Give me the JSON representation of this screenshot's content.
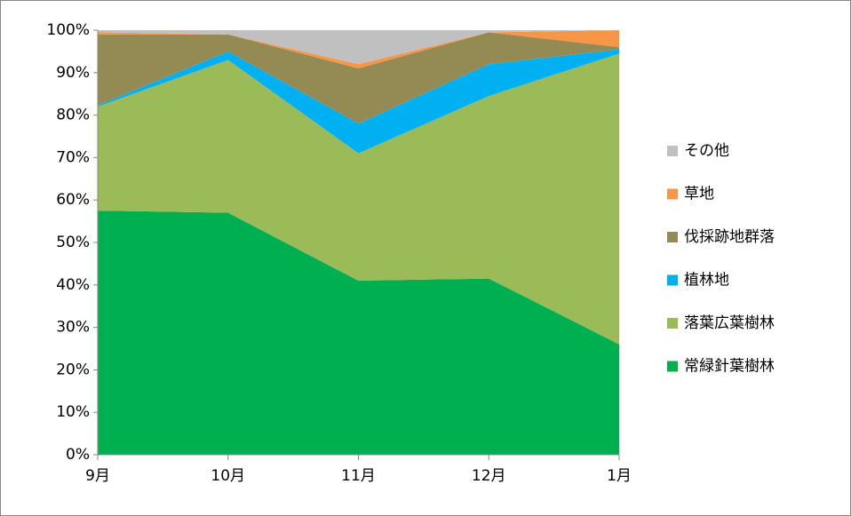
{
  "chart_data": {
    "type": "stacked_area",
    "categories": [
      "9月",
      "10月",
      "11月",
      "12月",
      "1月"
    ],
    "series": [
      {
        "name": "常緑針葉樹林",
        "color": "#00b050",
        "values": [
          57.5,
          57,
          41,
          41.5,
          26
        ]
      },
      {
        "name": "落葉広葉樹林",
        "color": "#9bbb59",
        "values": [
          24.5,
          36,
          30,
          43,
          68.5
        ]
      },
      {
        "name": "植林地",
        "color": "#00b0f0",
        "values": [
          0.3,
          2,
          7,
          7.5,
          1
        ]
      },
      {
        "name": "伐採跡地群落",
        "color": "#948a54",
        "values": [
          16.7,
          4,
          13,
          7.5,
          0.5
        ]
      },
      {
        "name": "草地",
        "color": "#f79646",
        "values": [
          0.5,
          0,
          1,
          0,
          4
        ]
      },
      {
        "name": "その他",
        "color": "#c0c0c0",
        "values": [
          0.5,
          1,
          8,
          0.5,
          0
        ]
      }
    ],
    "ylim": [
      0,
      100
    ],
    "yticks": [
      {
        "value": 0,
        "label": "0%"
      },
      {
        "value": 10,
        "label": "10%"
      },
      {
        "value": 20,
        "label": "20%"
      },
      {
        "value": 30,
        "label": "30%"
      },
      {
        "value": 40,
        "label": "40%"
      },
      {
        "value": 50,
        "label": "50%"
      },
      {
        "value": 60,
        "label": "60%"
      },
      {
        "value": 70,
        "label": "70%"
      },
      {
        "value": 80,
        "label": "80%"
      },
      {
        "value": 90,
        "label": "90%"
      },
      {
        "value": 100,
        "label": "100%"
      }
    ],
    "legend": "right"
  }
}
